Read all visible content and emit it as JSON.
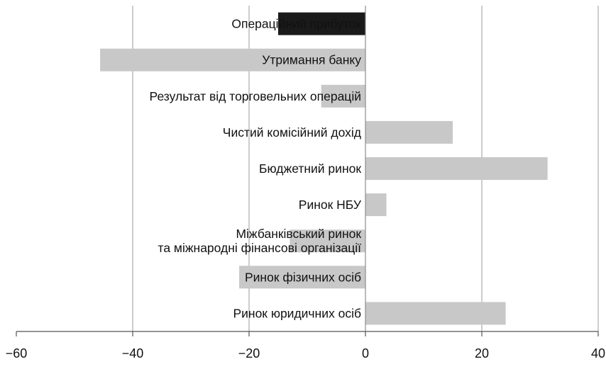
{
  "chart_data": {
    "type": "bar",
    "orientation": "horizontal",
    "title": "",
    "xlabel": "",
    "ylabel": "",
    "xlim": [
      -60,
      40
    ],
    "x_ticks": [
      -60,
      -40,
      -20,
      0,
      20,
      40
    ],
    "x_tick_labels": [
      "−60",
      "−40",
      "−20",
      "0",
      "20",
      "40"
    ],
    "grid": "vertical",
    "categories": [
      "Операційний прибуток",
      "Утримання банку",
      "Результат від торговельних операцій",
      "Чистий комісійний дохід",
      "Бюджетний ринок",
      "Ринок НБУ",
      "Міжбанківський ринок\nта міжнародні фінансові організації",
      "Ринок фізичних осіб",
      "Ринок юридичних осіб"
    ],
    "values": [
      -15,
      -45.6,
      -7.6,
      15,
      31.3,
      3.6,
      -13,
      -21.7,
      24.1
    ],
    "colors": [
      "#1a1a1a",
      "#c8c8c8",
      "#c8c8c8",
      "#c8c8c8",
      "#c8c8c8",
      "#c8c8c8",
      "#c8c8c8",
      "#c8c8c8",
      "#c8c8c8"
    ]
  }
}
